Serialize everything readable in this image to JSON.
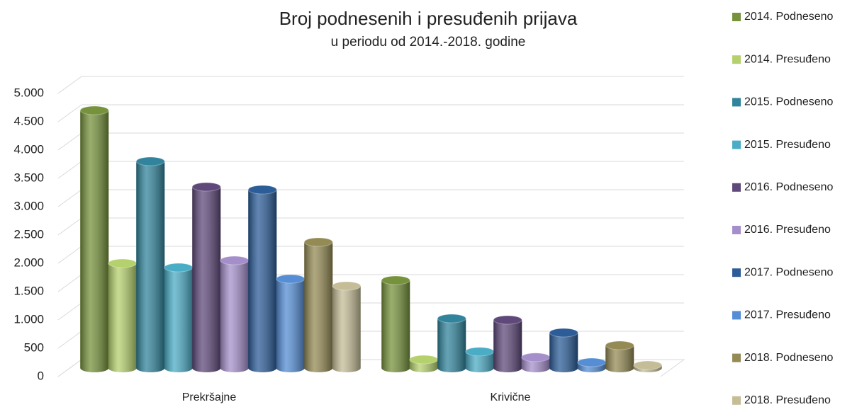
{
  "chart_data": {
    "type": "bar",
    "title": "Broj podnesenih i presuđenih prijava",
    "subtitle": "u periodu od 2014.-2018. godine",
    "categories": [
      "Prekršajne",
      "Krivične"
    ],
    "series": [
      {
        "name": "2014. Podneseno",
        "color": "#76923c",
        "values": [
          4550,
          1550
        ]
      },
      {
        "name": "2014. Presuđeno",
        "color": "#b5d16e",
        "values": [
          1850,
          150
        ]
      },
      {
        "name": "2015. Podneseno",
        "color": "#31849b",
        "values": [
          3650,
          875
        ]
      },
      {
        "name": "2015. Presuđeno",
        "color": "#4bacc6",
        "values": [
          1775,
          290
        ]
      },
      {
        "name": "2016. Podneseno",
        "color": "#5f497a",
        "values": [
          3200,
          850
        ]
      },
      {
        "name": "2016. Presuđeno",
        "color": "#a58fcb",
        "values": [
          1900,
          190
        ]
      },
      {
        "name": "2017. Podneseno",
        "color": "#2c5d98",
        "values": [
          3150,
          625
        ]
      },
      {
        "name": "2017. Presuđeno",
        "color": "#558ed5",
        "values": [
          1575,
          100
        ]
      },
      {
        "name": "2018. Podneseno",
        "color": "#948a54",
        "values": [
          2225,
          400
        ]
      },
      {
        "name": "2018. Presuđeno",
        "color": "#c4bd97",
        "values": [
          1450,
          50
        ]
      }
    ],
    "ylim": [
      0,
      5000
    ],
    "yticks": [
      0,
      500,
      {
        "value": 1000,
        "label": "1.000"
      },
      {
        "value": 1500,
        "label": "1.500"
      },
      {
        "value": 2000,
        "label": "2.000"
      },
      {
        "value": 2500,
        "label": "2.500"
      },
      {
        "value": 3000,
        "label": "3.000"
      },
      {
        "value": 3500,
        "label": "3.500"
      },
      {
        "value": 4000,
        "label": "4.000"
      },
      {
        "value": 4500,
        "label": "4.500"
      },
      {
        "value": 5000,
        "label": "5.000"
      }
    ],
    "grid": true,
    "legend": "right"
  }
}
